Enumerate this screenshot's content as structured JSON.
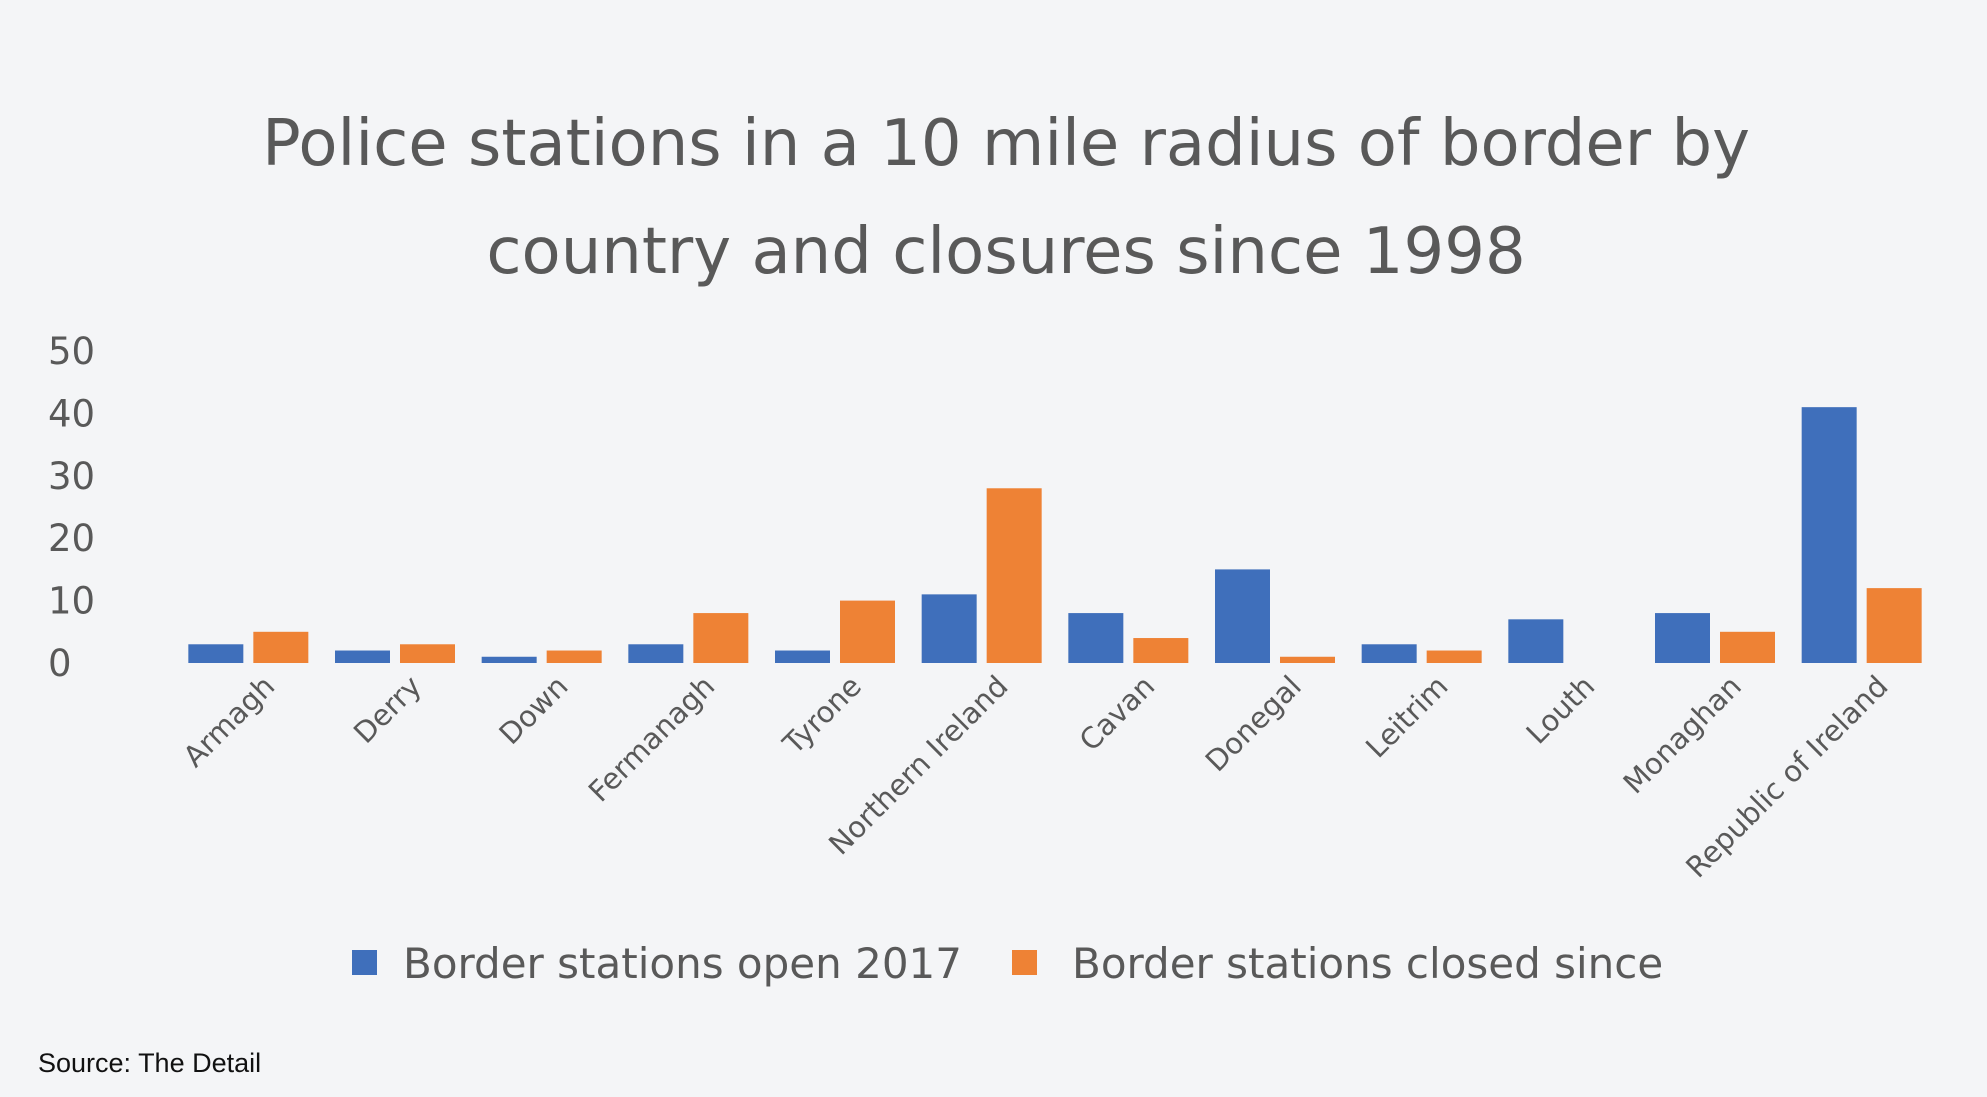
{
  "chart_data": {
    "type": "bar",
    "title_lines": [
      "Police stations in a 10 mile radius of border by",
      "country and closures since 1998"
    ],
    "categories": [
      "Armagh",
      "Derry",
      "Down",
      "Fermanagh",
      "Tyrone",
      "Northern Ireland",
      "Cavan",
      "Donegal",
      "Leitrim",
      "Louth",
      "Monaghan",
      "Republic of Ireland"
    ],
    "series": [
      {
        "name": "Border stations open 2017",
        "color": "#3f6fbb",
        "values": [
          3,
          2,
          1,
          3,
          2,
          11,
          8,
          15,
          3,
          7,
          8,
          41
        ]
      },
      {
        "name": "Border stations closed since",
        "color": "#ee8235",
        "values": [
          5,
          3,
          2,
          8,
          10,
          28,
          4,
          1,
          2,
          0,
          5,
          12
        ]
      }
    ],
    "yticks": [
      "50",
      "40",
      "30",
      "20",
      "10",
      "0"
    ],
    "ylim": [
      0,
      50
    ],
    "xlabel": "",
    "ylabel": "",
    "grid": false,
    "legend_position": "bottom"
  },
  "source": "Source: The Detail"
}
